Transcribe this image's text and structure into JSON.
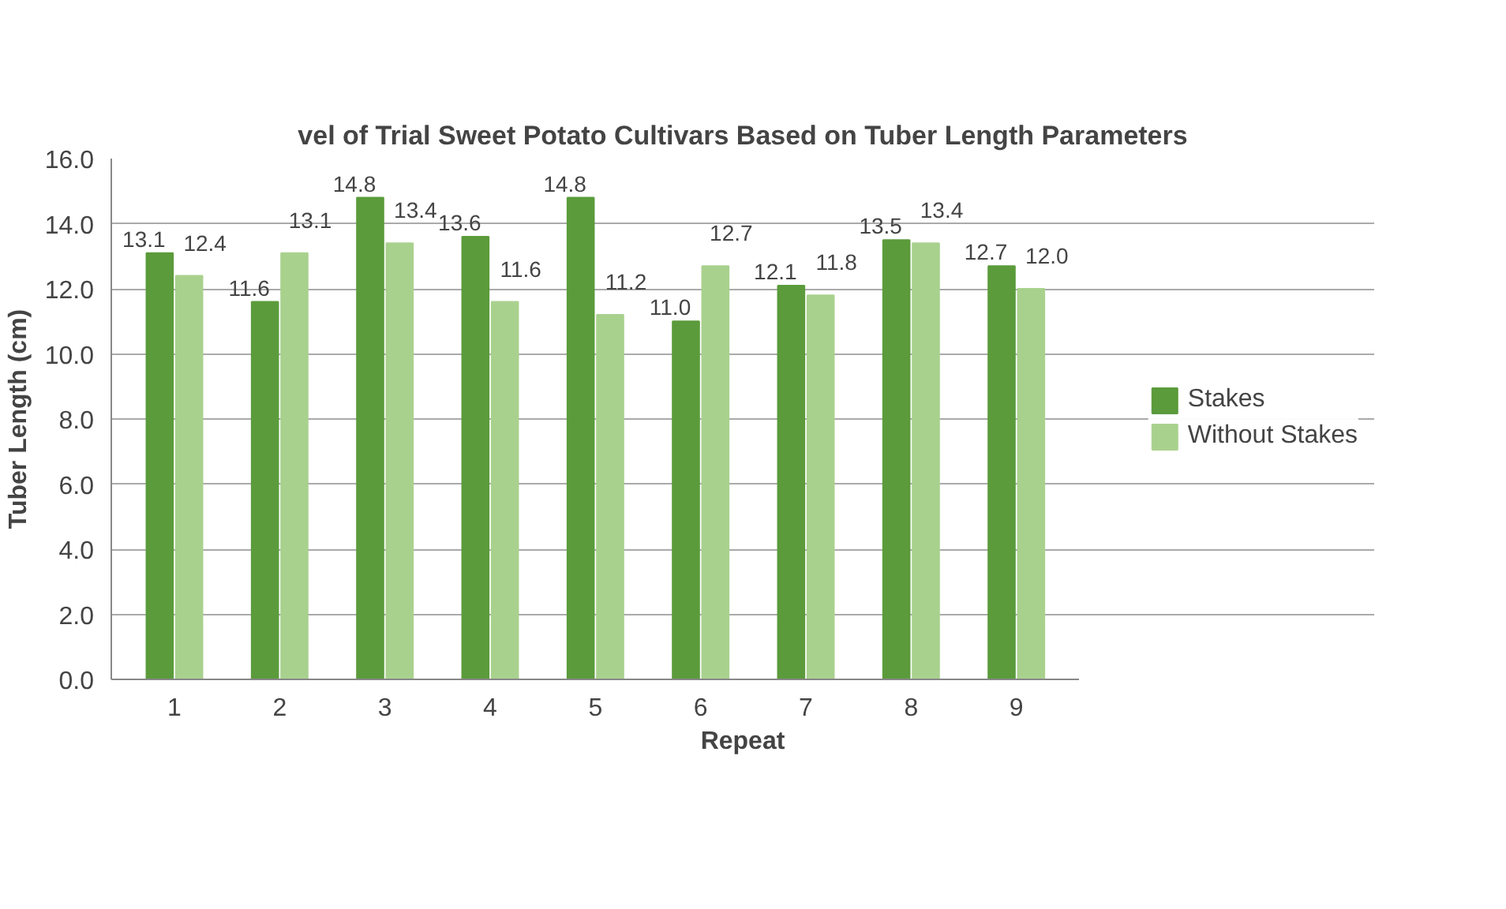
{
  "chart_data": {
    "type": "bar",
    "title": "vel of Trial Sweet Potato Cultivars Based on Tuber Length Parameters",
    "xlabel": "Repeat",
    "ylabel": "Tuber Length (cm)",
    "categories": [
      "1",
      "2",
      "3",
      "4",
      "5",
      "6",
      "7",
      "8",
      "9"
    ],
    "series": [
      {
        "name": "Stakes",
        "color": "#5b9b3b",
        "values": [
          13.1,
          11.6,
          14.8,
          13.6,
          14.8,
          11.0,
          12.1,
          13.5,
          12.7
        ],
        "value_labels": [
          "13.1",
          "11.6",
          "14.8",
          "13.6",
          "14.8",
          "11.0",
          "12.1",
          "13.5",
          "12.7"
        ]
      },
      {
        "name": "Without Stakes",
        "color": "#a9d18e",
        "values": [
          12.4,
          13.1,
          13.4,
          11.6,
          11.2,
          12.7,
          11.8,
          13.4,
          12.0
        ],
        "value_labels": [
          "12.4",
          "13.1",
          "13.4",
          "11.6",
          "11.2",
          "12.7",
          "11.8",
          "13.4",
          "12.0"
        ]
      }
    ],
    "ylim": [
      0,
      16
    ],
    "yticks": [
      {
        "value": 0,
        "label": "0.0"
      },
      {
        "value": 2,
        "label": "2.0"
      },
      {
        "value": 4,
        "label": "4.0"
      },
      {
        "value": 6,
        "label": "6.0"
      },
      {
        "value": 8,
        "label": "8.0"
      },
      {
        "value": 10,
        "label": "10.0"
      },
      {
        "value": 12,
        "label": "12.0"
      },
      {
        "value": 14,
        "label": "14.0"
      },
      {
        "value": 16,
        "label": "16.0"
      }
    ],
    "grid": "y",
    "legend": "right"
  }
}
